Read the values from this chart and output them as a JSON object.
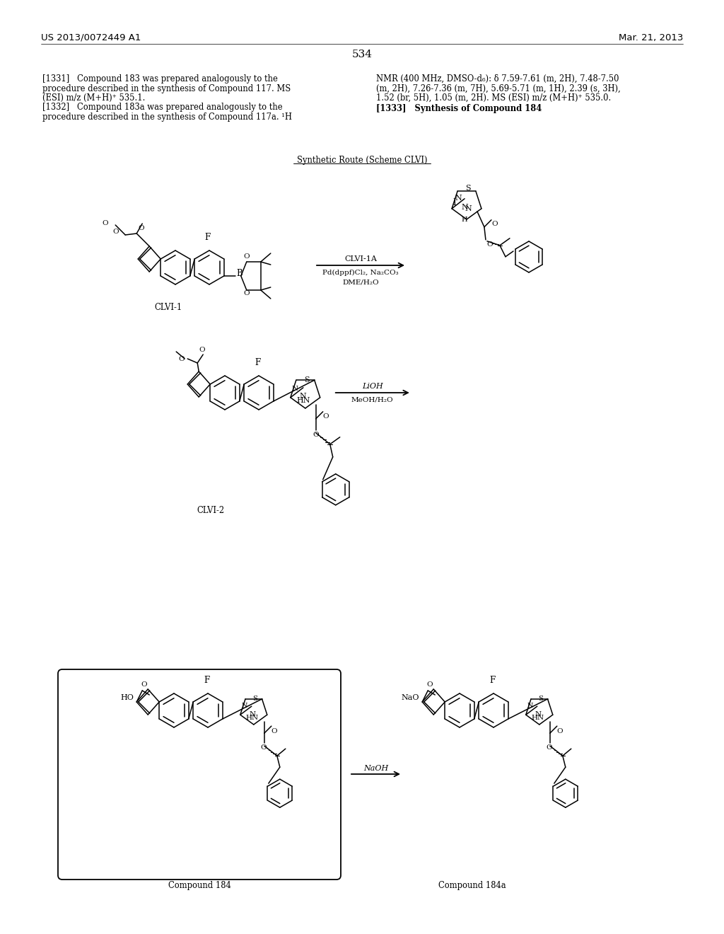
{
  "bg_color": "#ffffff",
  "page_width": 10.24,
  "page_height": 13.2,
  "header_left": "US 2013/0072449 A1",
  "header_right": "Mar. 21, 2013",
  "page_number": "534",
  "para_1331_lines": [
    "[1331]   Compound 183 was prepared analogously to the",
    "procedure described in the synthesis of Compound 117. MS",
    "(ESI) m/z (M+H)⁺ 535.1."
  ],
  "para_1332_lines": [
    "[1332]   Compound 183a was prepared analogously to the",
    "procedure described in the synthesis of Compound 117a. ¹H"
  ],
  "para_nmr_lines": [
    "NMR (400 MHz, DMSO-d₆): δ 7.59-7.61 (m, 2H), 7.48-7.50",
    "(m, 2H), 7.26-7.36 (m, 7H), 5.69-5.71 (m, 1H), 2.39 (s, 3H),",
    "1.52 (br, 5H), 1.05 (m, 2H). MS (ESI) m/z (M+H)⁺ 535.0."
  ],
  "para_1333": "[1333]   Synthesis of Compound 184",
  "synthetic_route_label": "Synthetic Route (Scheme CLVI)",
  "clvi1_label": "CLVI-1",
  "clvi1a_label": "CLVI-1A",
  "clvi2_label": "CLVI-2",
  "compound184_label": "Compound 184",
  "compound184a_label": "Compound 184a",
  "arrow1_line1": "CLVI-1A",
  "arrow1_line2": "Pd(dppf)Cl₂, Na₂CO₃",
  "arrow1_line3": "DME/H₂O",
  "arrow2_line1": "LiOH",
  "arrow2_line2": "MeOH/H₂O",
  "arrow3_reagent": "NaOH"
}
